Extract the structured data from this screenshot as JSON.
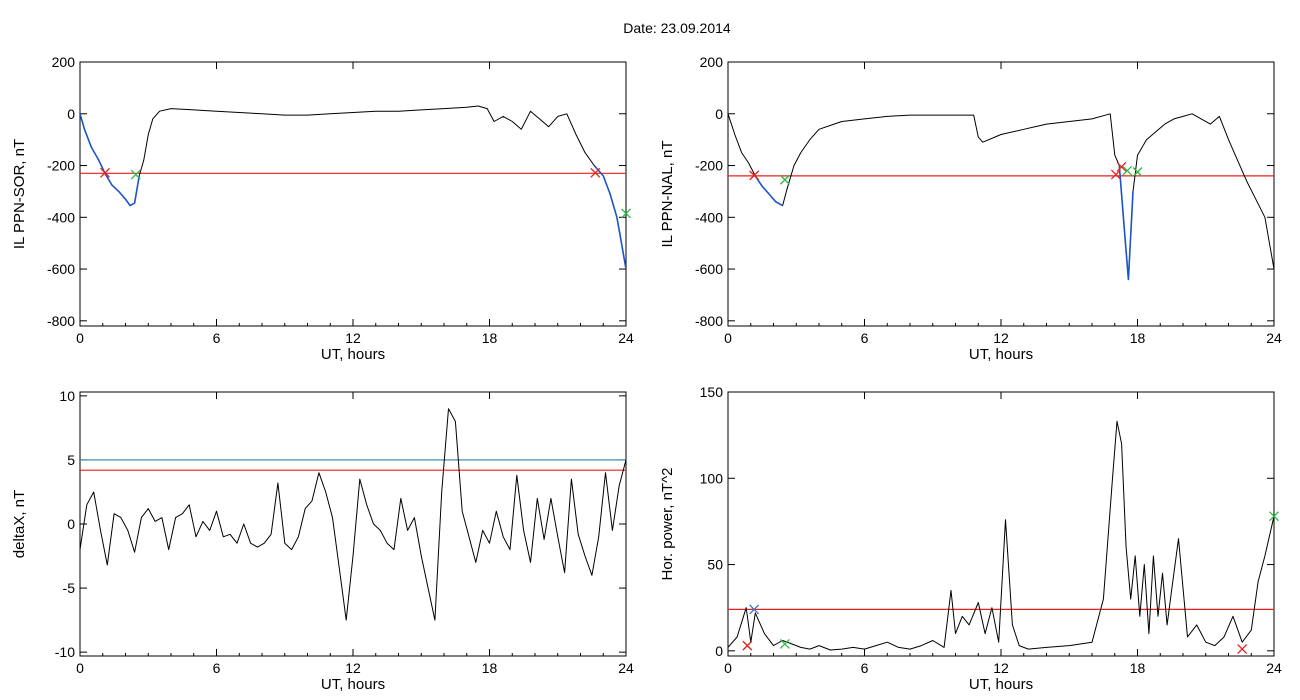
{
  "figure": {
    "title": "Date:  23.09.2014"
  },
  "chart_data": [
    {
      "id": "tl",
      "type": "line",
      "xlabel": "UT, hours",
      "ylabel": "IL PPN-SOR, nT",
      "xlim": [
        0,
        24
      ],
      "ylim": [
        -820,
        200
      ],
      "xticks": [
        0,
        6,
        12,
        18,
        24
      ],
      "yticks": [
        -800,
        -600,
        -400,
        -200,
        0,
        200
      ],
      "series": [
        {
          "color": "#000000",
          "x": [
            0,
            0.2,
            0.5,
            0.8,
            1.1,
            1.4,
            1.7,
            2.0,
            2.2,
            2.4,
            2.6,
            2.8,
            3.0,
            3.2,
            3.5,
            4.0,
            5,
            6,
            7,
            8,
            9,
            10,
            11,
            12,
            13,
            14,
            15,
            16,
            17,
            17.5,
            17.9,
            18.2,
            18.6,
            19.0,
            19.4,
            19.8,
            20.2,
            20.6,
            21.0,
            21.4,
            21.8,
            22.2,
            22.6,
            23.0,
            23.3,
            23.6,
            23.8,
            24
          ],
          "y": [
            0,
            -60,
            -130,
            -175,
            -230,
            -275,
            -300,
            -330,
            -355,
            -345,
            -240,
            -180,
            -80,
            -20,
            10,
            20,
            15,
            10,
            5,
            0,
            -5,
            -5,
            0,
            5,
            10,
            10,
            15,
            20,
            25,
            30,
            20,
            -30,
            -10,
            -30,
            -60,
            10,
            -20,
            -50,
            -10,
            0,
            -80,
            -150,
            -200,
            -240,
            -310,
            -400,
            -500,
            -600
          ]
        },
        {
          "color": "#1a56c8",
          "x": [
            0,
            0.2,
            0.5,
            0.8,
            1.1,
            1.4,
            1.7,
            2.0,
            2.2,
            2.4,
            2.6
          ],
          "y": [
            0,
            -60,
            -130,
            -175,
            -230,
            -275,
            -300,
            -330,
            -355,
            -345,
            -240
          ]
        },
        {
          "color": "#1a56c8",
          "x": [
            22.6,
            23.0,
            23.3,
            23.6,
            23.8,
            24
          ],
          "y": [
            -200,
            -240,
            -310,
            -400,
            -500,
            -600
          ]
        }
      ],
      "hlines": [
        {
          "y": -230,
          "color": "#e8201c"
        }
      ],
      "markers": [
        {
          "x": 1.1,
          "y": -228,
          "color": "#e8201c"
        },
        {
          "x": 2.45,
          "y": -235,
          "color": "#2fb84a"
        },
        {
          "x": 22.65,
          "y": -228,
          "color": "#e8201c"
        },
        {
          "x": 24.0,
          "y": -385,
          "color": "#2fb84a"
        }
      ]
    },
    {
      "id": "tr",
      "type": "line",
      "xlabel": "UT, hours",
      "ylabel": "IL PPN-NAL, nT",
      "xlim": [
        0,
        24
      ],
      "ylim": [
        -820,
        200
      ],
      "xticks": [
        0,
        6,
        12,
        18,
        24
      ],
      "yticks": [
        -800,
        -600,
        -400,
        -200,
        0,
        200
      ],
      "series": [
        {
          "color": "#000000",
          "x": [
            0,
            0.3,
            0.6,
            0.9,
            1.2,
            1.5,
            1.8,
            2.1,
            2.4,
            2.6,
            2.9,
            3.2,
            3.6,
            4.0,
            5,
            6,
            7,
            8,
            9,
            10,
            10.8,
            11.0,
            11.2,
            12,
            13,
            14,
            15,
            16,
            16.8,
            17.0,
            17.2,
            17.4,
            17.6,
            17.8,
            18.0,
            18.4,
            18.8,
            19.2,
            19.6,
            20.0,
            20.4,
            20.8,
            21.2,
            21.6,
            22.0,
            22.4,
            22.8,
            23.2,
            23.6,
            24
          ],
          "y": [
            0,
            -80,
            -150,
            -190,
            -240,
            -280,
            -310,
            -340,
            -355,
            -290,
            -200,
            -150,
            -100,
            -60,
            -30,
            -20,
            -10,
            -5,
            -5,
            -5,
            -5,
            -90,
            -110,
            -80,
            -60,
            -40,
            -30,
            -20,
            0,
            -160,
            -200,
            -420,
            -640,
            -300,
            -160,
            -100,
            -70,
            -40,
            -20,
            -10,
            0,
            -20,
            -40,
            -10,
            -100,
            -180,
            -260,
            -330,
            -400,
            -600
          ]
        },
        {
          "color": "#1a56c8",
          "x": [
            1.2,
            1.5,
            1.8,
            2.1,
            2.4
          ],
          "y": [
            -240,
            -280,
            -310,
            -340,
            -355
          ]
        },
        {
          "color": "#1a56c8",
          "x": [
            17.2,
            17.4,
            17.6,
            17.8
          ],
          "y": [
            -200,
            -420,
            -640,
            -300
          ]
        }
      ],
      "hlines": [
        {
          "y": -240,
          "color": "#e8201c"
        }
      ],
      "markers": [
        {
          "x": 1.15,
          "y": -238,
          "color": "#e8201c"
        },
        {
          "x": 2.5,
          "y": -255,
          "color": "#2fb84a"
        },
        {
          "x": 17.05,
          "y": -235,
          "color": "#e8201c"
        },
        {
          "x": 17.3,
          "y": -205,
          "color": "#e8201c"
        },
        {
          "x": 17.55,
          "y": -220,
          "color": "#2fb84a"
        },
        {
          "x": 18.0,
          "y": -225,
          "color": "#2fb84a"
        }
      ]
    },
    {
      "id": "bl",
      "type": "line",
      "xlabel": "UT, hours",
      "ylabel": "deltaX, nT",
      "xlim": [
        0,
        24
      ],
      "ylim": [
        -10.3,
        10.3
      ],
      "xticks": [
        0,
        6,
        12,
        18,
        24
      ],
      "yticks": [
        -10,
        -5,
        0,
        5,
        10
      ],
      "series": [
        {
          "color": "#000000",
          "x": [
            0,
            0.3,
            0.6,
            0.9,
            1.2,
            1.5,
            1.8,
            2.1,
            2.4,
            2.7,
            3.0,
            3.3,
            3.6,
            3.9,
            4.2,
            4.5,
            4.8,
            5.1,
            5.4,
            5.7,
            6.0,
            6.3,
            6.6,
            6.9,
            7.2,
            7.5,
            7.8,
            8.1,
            8.4,
            8.7,
            9.0,
            9.3,
            9.6,
            9.9,
            10.2,
            10.5,
            10.8,
            11.1,
            11.4,
            11.7,
            12.0,
            12.3,
            12.6,
            12.9,
            13.2,
            13.5,
            13.8,
            14.1,
            14.4,
            14.7,
            15.0,
            15.3,
            15.6,
            15.9,
            16.2,
            16.5,
            16.8,
            17.1,
            17.4,
            17.7,
            18.0,
            18.3,
            18.6,
            18.9,
            19.2,
            19.5,
            19.8,
            20.1,
            20.4,
            20.7,
            21.0,
            21.3,
            21.6,
            21.9,
            22.2,
            22.5,
            22.8,
            23.1,
            23.4,
            23.7,
            24
          ],
          "y": [
            -2,
            1.5,
            2.5,
            -0.5,
            -3.2,
            0.8,
            0.5,
            -0.5,
            -2.2,
            0.5,
            1.2,
            0.2,
            0.5,
            -2,
            0.5,
            0.8,
            1.5,
            -1,
            0.2,
            -0.5,
            1,
            -1,
            -0.8,
            -1.5,
            0,
            -1.5,
            -1.8,
            -1.5,
            -0.8,
            3.2,
            -1.5,
            -2,
            -1,
            1.2,
            1.8,
            4,
            2.5,
            0.5,
            -3.5,
            -7.5,
            -2.5,
            3.5,
            1.5,
            0,
            -0.5,
            -1.5,
            -2,
            2,
            -0.5,
            0.5,
            -2.5,
            -5,
            -7.5,
            2.5,
            9,
            8,
            1,
            -1,
            -3,
            -0.5,
            -1.5,
            1,
            -1,
            -2,
            3.8,
            -0.5,
            -3,
            2,
            -1.2,
            2,
            -1,
            -3.8,
            3.5,
            -0.8,
            -2.5,
            -4,
            -1,
            4,
            -0.5,
            3,
            5
          ]
        }
      ],
      "hlines": [
        {
          "y": 5,
          "color": "#2b7fa0"
        },
        {
          "y": 4.2,
          "color": "#e8201c"
        }
      ],
      "markers": []
    },
    {
      "id": "br",
      "type": "line",
      "xlabel": "UT, hours",
      "ylabel": "Hor. power, nT^2",
      "xlim": [
        0,
        24
      ],
      "ylim": [
        -3,
        150
      ],
      "xticks": [
        0,
        6,
        12,
        18,
        24
      ],
      "yticks": [
        0,
        50,
        100,
        150
      ],
      "series": [
        {
          "color": "#000000",
          "x": [
            0,
            0.4,
            0.8,
            1.0,
            1.2,
            1.6,
            2.0,
            2.4,
            2.8,
            3.2,
            3.6,
            4.0,
            4.5,
            5,
            5.5,
            6,
            6.5,
            7,
            7.5,
            8,
            8.5,
            9,
            9.5,
            9.8,
            10.0,
            10.3,
            10.6,
            11.0,
            11.3,
            11.6,
            11.9,
            12.2,
            12.5,
            12.8,
            13.2,
            14,
            15,
            16,
            16.5,
            16.9,
            17.1,
            17.3,
            17.5,
            17.7,
            17.9,
            18.1,
            18.3,
            18.5,
            18.7,
            18.9,
            19.1,
            19.3,
            19.5,
            19.8,
            20.2,
            20.6,
            21,
            21.4,
            21.8,
            22.2,
            22.6,
            23.0,
            23.3,
            23.6,
            24
          ],
          "y": [
            2,
            8,
            25,
            5,
            22,
            10,
            3,
            6,
            4,
            2,
            1,
            3,
            0.5,
            1,
            2,
            1,
            3,
            5,
            2,
            1,
            3,
            6,
            2,
            35,
            10,
            20,
            15,
            28,
            10,
            25,
            5,
            76,
            15,
            3,
            1,
            2,
            3,
            5,
            30,
            100,
            133,
            120,
            60,
            30,
            55,
            20,
            50,
            10,
            55,
            20,
            45,
            15,
            35,
            65,
            8,
            15,
            5,
            3,
            8,
            20,
            5,
            12,
            40,
            55,
            78
          ]
        }
      ],
      "hlines": [
        {
          "y": 24,
          "color": "#e8201c"
        }
      ],
      "markers": [
        {
          "x": 0.85,
          "y": 3,
          "color": "#e8201c"
        },
        {
          "x": 1.15,
          "y": 24,
          "color": "#3a6ed0"
        },
        {
          "x": 2.5,
          "y": 4,
          "color": "#2fb84a"
        },
        {
          "x": 22.6,
          "y": 1,
          "color": "#e8201c"
        },
        {
          "x": 24.0,
          "y": 78,
          "color": "#2fb84a"
        }
      ]
    }
  ]
}
